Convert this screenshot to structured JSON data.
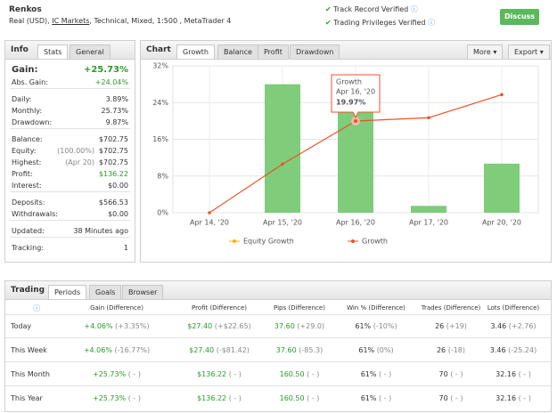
{
  "header": {
    "title": "Renkos",
    "subtitle": [
      "Real (USD), ",
      "IC Markets",
      ", Technical, Mixed, 1:500 , MetaTrader 4"
    ],
    "verified": [
      "Track Record Verified",
      "Trading Privileges Verified"
    ],
    "button": "Discuss"
  },
  "info": {
    "label": "Info",
    "tabs": [
      "Stats",
      "General"
    ],
    "groups": [
      [
        {
          "label": "Gain:",
          "value": "+25.73%"
        },
        {
          "label": "Abs. Gain:",
          "value": "+24.04%"
        }
      ],
      [
        {
          "label": "Daily:",
          "value": "3.89%"
        },
        {
          "label": "Monthly:",
          "value": "25.73%"
        },
        {
          "label": "Drawdown:",
          "value": "9.87%"
        }
      ],
      [
        {
          "label": "Balance:",
          "value": "$702.75"
        },
        {
          "label": "Equity:",
          "note": "(100.00%)",
          "value": "$702.75"
        },
        {
          "label": "Highest:",
          "note": "(Apr 20)",
          "value": "$702.75"
        },
        {
          "label": "Profit:",
          "value": "$136.22"
        },
        {
          "label": "Interest:",
          "value": "$0.00"
        }
      ],
      [
        {
          "label": "Deposits:",
          "value": "$566.53"
        },
        {
          "label": "Withdrawals:",
          "value": "$0.00"
        }
      ],
      [
        {
          "label": "Updated:",
          "value": "38 Minutes ago"
        }
      ],
      [
        {
          "label": "Tracking:",
          "value": "1"
        }
      ]
    ]
  },
  "chart_panel": {
    "label": "Chart",
    "tabs": [
      "Growth",
      "Balance",
      "Profit",
      "Drawdown"
    ],
    "menus": [
      "More",
      "Export"
    ]
  },
  "chart_data": {
    "type": "bar_line",
    "categories": [
      "Apr 14, '20",
      "Apr 15, '20",
      "Apr 16, '20",
      "Apr 17, '20",
      "Apr 20, '20"
    ],
    "bars": {
      "color": "#7fcc7a",
      "values": [
        0,
        28,
        22,
        1.5,
        10.7
      ]
    },
    "line": {
      "color": "#e8542a",
      "values": [
        0,
        10.6,
        19.97,
        20.7,
        25.73
      ]
    },
    "legend": [
      {
        "name": "Equity Growth",
        "color": "#f5b400"
      },
      {
        "name": "Growth",
        "color": "#e8542a"
      }
    ],
    "ylim": [
      0,
      32
    ],
    "yticks": [
      {
        "value": 0,
        "label": "0%"
      },
      {
        "value": 8,
        "label": "8%"
      },
      {
        "value": 16,
        "label": "16%"
      },
      {
        "value": 24,
        "label": "24%"
      },
      {
        "value": 32,
        "label": "32%"
      }
    ],
    "grid": true,
    "tooltip": {
      "title": "Growth",
      "date": "Apr 16, '20",
      "value": "19.97%"
    }
  },
  "trading": {
    "label": "Trading",
    "tabs": [
      "Periods",
      "Goals",
      "Browser"
    ],
    "columns": [
      "Gain (Difference)",
      "Profit (Difference)",
      "Pips (Difference)",
      "Win % (Difference)",
      "Trades (Difference)",
      "Lots (Difference)"
    ],
    "rows": [
      {
        "period": "Today",
        "cells": [
          [
            "+4.06%",
            "(+3.35%)"
          ],
          [
            "$27.40",
            "(+$22.65)"
          ],
          [
            "37.60",
            "(+29.0)"
          ],
          [
            "61%",
            "(-10%)"
          ],
          [
            "26",
            "(+19)"
          ],
          [
            "3.46",
            "(+2.76)"
          ]
        ]
      },
      {
        "period": "This Week",
        "cells": [
          [
            "+4.06%",
            "(-16.77%)"
          ],
          [
            "$27.40",
            "(-$81.42)"
          ],
          [
            "37.60",
            "(-85.3)"
          ],
          [
            "61%",
            "(0%)"
          ],
          [
            "26",
            "(-18)"
          ],
          [
            "3.46",
            "(-25.24)"
          ]
        ]
      },
      {
        "period": "This Month",
        "cells": [
          [
            "+25.73%",
            "( - )"
          ],
          [
            "$136.22",
            "( - )"
          ],
          [
            "160.50",
            "( - )"
          ],
          [
            "61%",
            "( - )"
          ],
          [
            "70",
            "( - )"
          ],
          [
            "32.16",
            "( - )"
          ]
        ]
      },
      {
        "period": "This Year",
        "cells": [
          [
            "+25.73%",
            "( - )"
          ],
          [
            "$136.22",
            "( - )"
          ],
          [
            "160.50",
            "( - )"
          ],
          [
            "61%",
            "( - )"
          ],
          [
            "70",
            "( - )"
          ],
          [
            "32.16",
            "( - )"
          ]
        ]
      }
    ]
  }
}
